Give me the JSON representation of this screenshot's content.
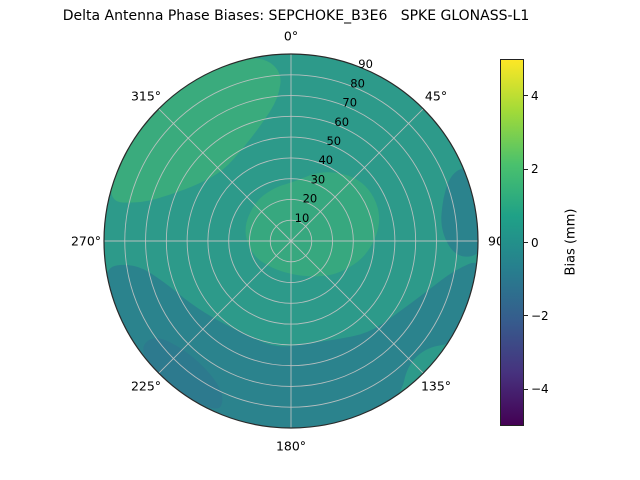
{
  "title": "Delta Antenna Phase Biases: SEPCHOKE_B3E6   SPKE GLONASS-L1",
  "chart_data": {
    "type": "heatmap",
    "projection": "polar",
    "theta_zero_location": "top",
    "theta_direction": "clockwise",
    "theta_ticks_deg": [
      0,
      45,
      90,
      135,
      180,
      225,
      270,
      315
    ],
    "theta_tick_labels": [
      "0°",
      "45°",
      "90",
      "135°",
      "180°",
      "225°",
      "270°",
      "315°"
    ],
    "radial_ticks": [
      10,
      20,
      30,
      40,
      50,
      60,
      70,
      80,
      90
    ],
    "r_max": 90,
    "grid": true,
    "grid_color": "#c4c4c4",
    "boundary_color": "#2a2a2a",
    "base_region": {
      "bias_mm": 0.5,
      "color": "#2d9a8a"
    },
    "contour_regions": [
      {
        "name": "upper-left-high",
        "bias_mm": 1.5,
        "color": "#3aab7d",
        "points": [
          [
            282,
            91
          ],
          [
            298,
            93
          ],
          [
            316,
            93
          ],
          [
            334,
            93
          ],
          [
            350,
            91
          ],
          [
            357,
            82
          ],
          [
            355,
            69
          ],
          [
            346,
            58
          ],
          [
            332,
            50
          ],
          [
            316,
            47
          ],
          [
            302,
            52
          ],
          [
            291,
            62
          ],
          [
            284,
            75
          ]
        ]
      },
      {
        "name": "center-high",
        "bias_mm": 1.2,
        "color": "#37a87f",
        "points": [
          [
            0,
            28
          ],
          [
            25,
            38
          ],
          [
            50,
            46
          ],
          [
            75,
            46
          ],
          [
            100,
            38
          ],
          [
            125,
            28
          ],
          [
            150,
            20
          ],
          [
            180,
            16
          ],
          [
            215,
            16
          ],
          [
            250,
            20
          ],
          [
            285,
            24
          ],
          [
            320,
            26
          ],
          [
            345,
            27
          ]
        ]
      },
      {
        "name": "bottom-low",
        "bias_mm": -1.0,
        "color": "#2b838d",
        "points": [
          [
            95,
            93
          ],
          [
            110,
            93
          ],
          [
            122,
            93
          ],
          [
            128,
            83
          ],
          [
            137,
            82
          ],
          [
            145,
            92
          ],
          [
            162,
            93
          ],
          [
            182,
            93
          ],
          [
            202,
            93
          ],
          [
            222,
            93
          ],
          [
            242,
            93
          ],
          [
            262,
            93
          ],
          [
            262,
            76
          ],
          [
            252,
            64
          ],
          [
            238,
            57
          ],
          [
            222,
            52
          ],
          [
            205,
            50
          ],
          [
            188,
            52
          ],
          [
            172,
            50
          ],
          [
            156,
            52
          ],
          [
            140,
            58
          ],
          [
            124,
            62
          ],
          [
            110,
            70
          ],
          [
            100,
            80
          ]
        ]
      },
      {
        "name": "right-low",
        "bias_mm": -0.8,
        "color": "#2b838d",
        "points": [
          [
            67,
            93
          ],
          [
            80,
            93
          ],
          [
            94,
            93
          ],
          [
            96,
            80
          ],
          [
            86,
            72
          ],
          [
            74,
            76
          ],
          [
            67,
            84
          ]
        ]
      },
      {
        "name": "bottom-left-lower",
        "bias_mm": -2.0,
        "color": "#2d7a8e",
        "points": [
          [
            203,
            90
          ],
          [
            218,
            91
          ],
          [
            234,
            91
          ],
          [
            236,
            80
          ],
          [
            224,
            73
          ],
          [
            210,
            75
          ],
          [
            203,
            82
          ]
        ]
      }
    ],
    "colorbar": {
      "label": "Bias (mm)",
      "ticks": [
        4,
        2,
        0,
        -2,
        -4
      ],
      "vmin": -5,
      "vmax": 5,
      "colormap": "viridis",
      "gradient_stops": [
        "#440154",
        "#46327e",
        "#365c8d",
        "#277f8e",
        "#1fa187",
        "#4ac16d",
        "#a0da39",
        "#fde725"
      ]
    }
  }
}
